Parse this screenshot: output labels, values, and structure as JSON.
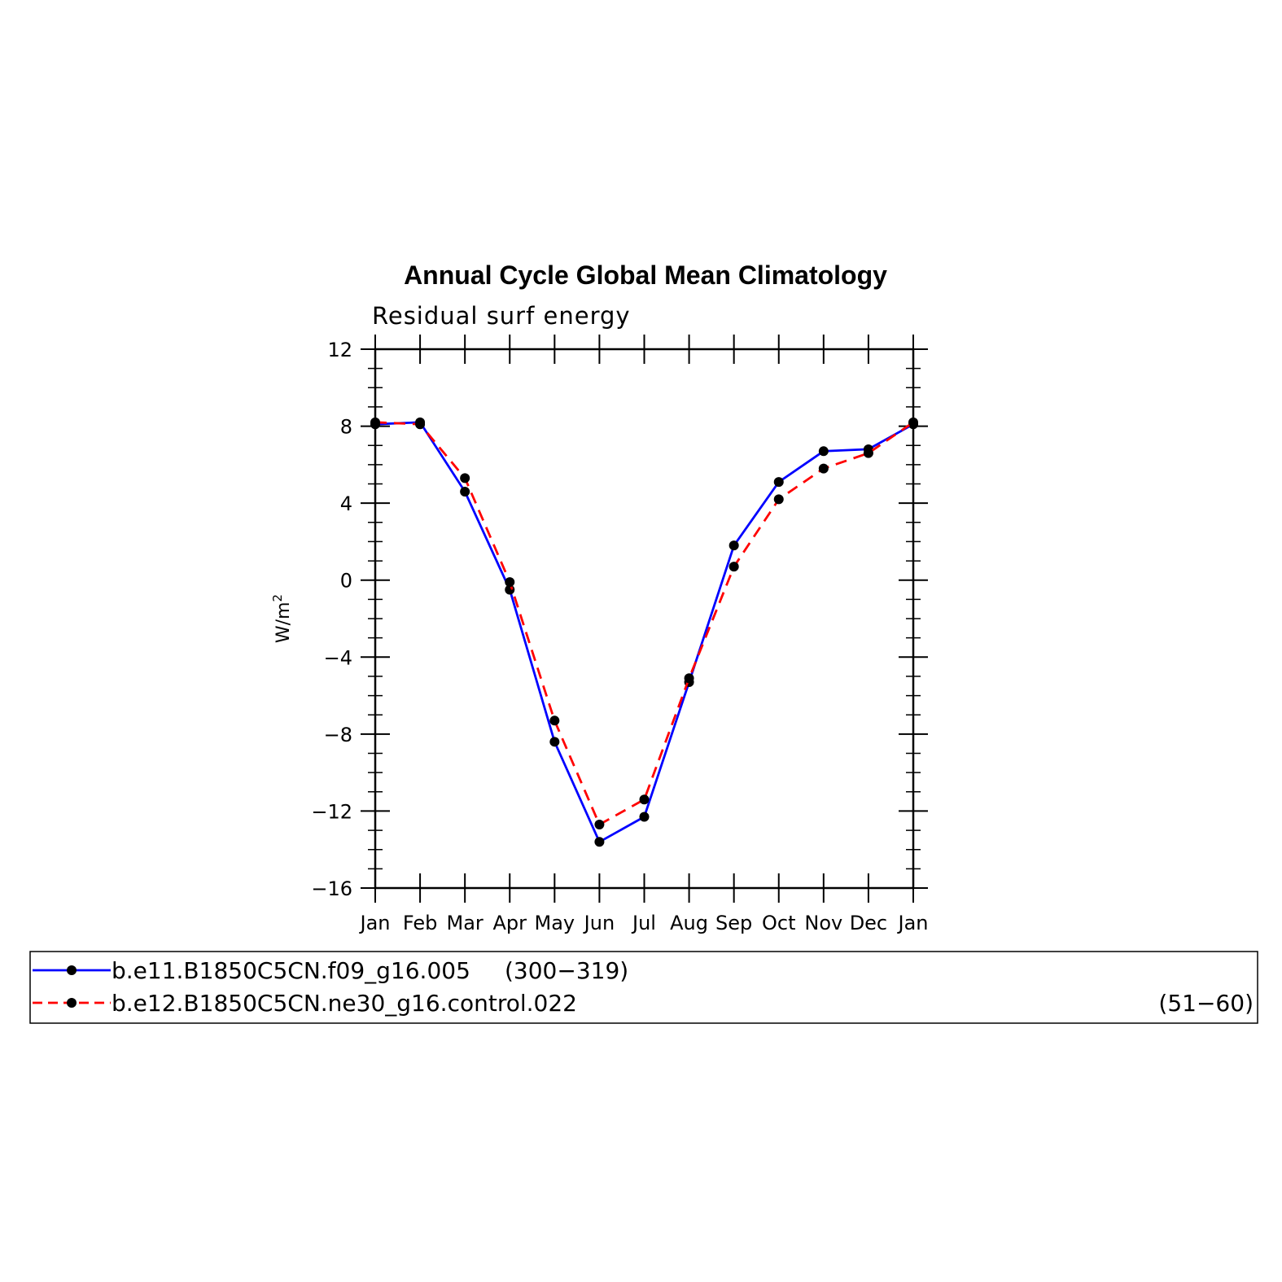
{
  "chart_data": {
    "type": "line",
    "title": "Annual Cycle Global Mean Climatology",
    "subtitle": "Residual surf energy",
    "ylabel": "W/m",
    "ylabel_sup": "2",
    "xlabel": "",
    "categories": [
      "Jan",
      "Feb",
      "Mar",
      "Apr",
      "May",
      "Jun",
      "Jul",
      "Aug",
      "Sep",
      "Oct",
      "Nov",
      "Dec",
      "Jan"
    ],
    "ylim": [
      -16,
      12
    ],
    "yticks": [
      12,
      8,
      4,
      0,
      -4,
      -8,
      -12,
      -16
    ],
    "ytick_labels": [
      "12",
      "8",
      "4",
      "0",
      "−4",
      "−8",
      "−12",
      "−16"
    ],
    "series": [
      {
        "name": "b.e11.B1850C5CN.f09_g16.005",
        "period": "(300−319)",
        "color": "#0000ff",
        "dash": "solid",
        "values": [
          8.1,
          8.2,
          4.6,
          -0.5,
          -8.4,
          -13.6,
          -12.3,
          -5.3,
          1.8,
          5.1,
          6.7,
          6.8,
          8.1
        ]
      },
      {
        "name": "b.e12.B1850C5CN.ne30_g16.control.022",
        "period": "(51−60)",
        "color": "#ff0000",
        "dash": "dashed",
        "values": [
          8.2,
          8.1,
          5.3,
          -0.1,
          -7.3,
          -12.7,
          -11.4,
          -5.1,
          0.7,
          4.2,
          5.8,
          6.6,
          8.2
        ]
      }
    ],
    "grid": false,
    "legend_position": "bottom"
  }
}
